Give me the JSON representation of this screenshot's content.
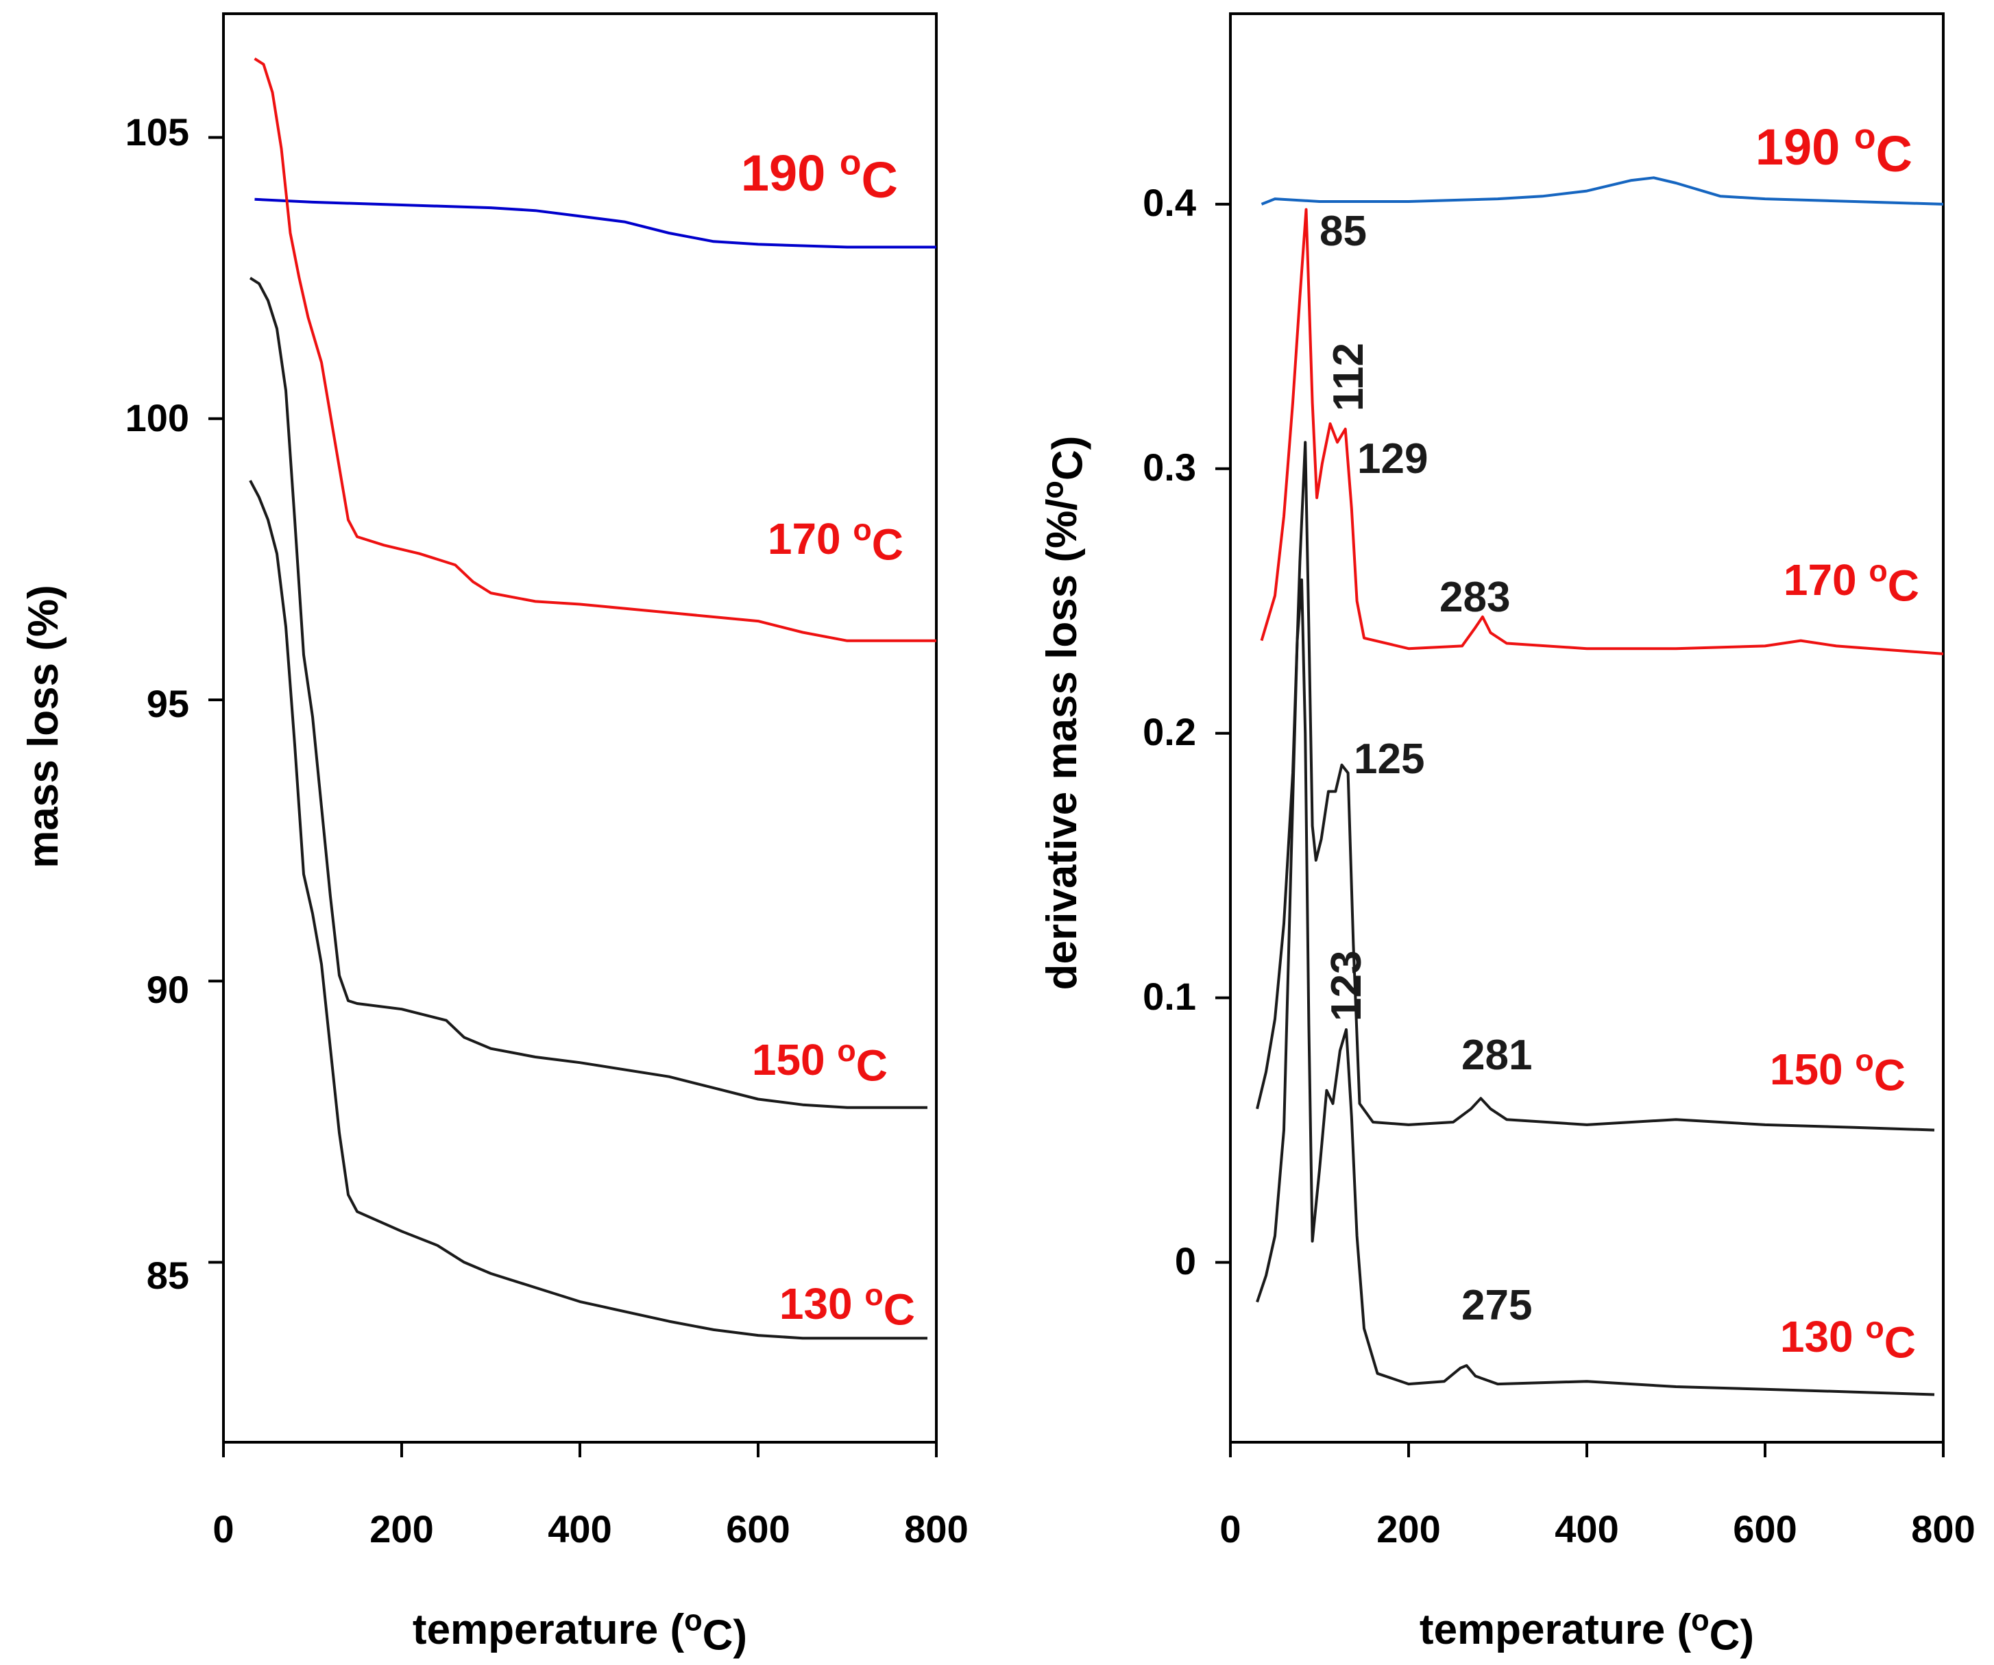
{
  "chart_data": [
    {
      "type": "line",
      "title": "",
      "xlabel": "temperature (°C)",
      "ylabel": "mass loss (%)",
      "xlim": [
        0,
        800
      ],
      "ylim": [
        81.8,
        107.2
      ],
      "xticks": [
        0,
        200,
        400,
        600,
        800
      ],
      "yticks": [
        85,
        90,
        95,
        100,
        105
      ],
      "grid": false,
      "series": [
        {
          "name": "190 °C",
          "color": "#0000cc",
          "x": [
            35,
            100,
            200,
            300,
            350,
            400,
            450,
            500,
            550,
            600,
            700,
            800
          ],
          "y": [
            103.9,
            103.85,
            103.8,
            103.75,
            103.7,
            103.6,
            103.5,
            103.3,
            103.15,
            103.1,
            103.05,
            103.05
          ]
        },
        {
          "name": "170 °C",
          "color": "#ee1111",
          "x": [
            35,
            45,
            55,
            65,
            75,
            85,
            95,
            110,
            125,
            140,
            150,
            180,
            220,
            260,
            280,
            300,
            350,
            400,
            500,
            600,
            650,
            700,
            800
          ],
          "y": [
            106.4,
            106.3,
            105.8,
            104.8,
            103.3,
            102.5,
            101.8,
            101.0,
            99.6,
            98.2,
            97.9,
            97.75,
            97.6,
            97.4,
            97.1,
            96.9,
            96.75,
            96.7,
            96.55,
            96.4,
            96.2,
            96.05,
            96.05
          ]
        },
        {
          "name": "150 °C",
          "color": "#1a1a1a",
          "x": [
            30,
            40,
            50,
            60,
            70,
            80,
            90,
            100,
            110,
            120,
            130,
            140,
            150,
            200,
            250,
            270,
            300,
            350,
            400,
            500,
            550,
            600,
            650,
            700,
            790
          ],
          "y": [
            102.5,
            102.4,
            102.1,
            101.6,
            100.5,
            98.2,
            95.8,
            94.7,
            93.1,
            91.5,
            90.1,
            89.65,
            89.6,
            89.5,
            89.3,
            89.0,
            88.8,
            88.65,
            88.55,
            88.3,
            88.1,
            87.9,
            87.8,
            87.75,
            87.75
          ]
        },
        {
          "name": "130 °C",
          "color": "#1a1a1a",
          "x": [
            30,
            40,
            50,
            60,
            70,
            80,
            90,
            100,
            110,
            120,
            130,
            140,
            150,
            200,
            240,
            270,
            300,
            350,
            400,
            500,
            550,
            600,
            650,
            700,
            790
          ],
          "y": [
            98.9,
            98.6,
            98.2,
            97.6,
            96.3,
            94.2,
            91.9,
            91.2,
            90.3,
            88.8,
            87.3,
            86.2,
            85.9,
            85.55,
            85.3,
            85.0,
            84.8,
            84.55,
            84.3,
            83.95,
            83.8,
            83.7,
            83.65,
            83.65,
            83.65
          ]
        }
      ],
      "annotations": [
        {
          "text": "190 °C",
          "color": "#ee1111"
        },
        {
          "text": "170 °C",
          "color": "#ee1111"
        },
        {
          "text": "150 °C",
          "color": "#ee1111"
        },
        {
          "text": "130 °C",
          "color": "#ee1111"
        }
      ]
    },
    {
      "type": "line",
      "title": "",
      "xlabel": "temperature (°C)",
      "ylabel": "derivative mass loss (%/°C)",
      "xlim": [
        0,
        800
      ],
      "ylim": [
        -0.068,
        0.472
      ],
      "xticks": [
        0,
        200,
        400,
        600,
        800
      ],
      "yticks": [
        0.0,
        0.1,
        0.2,
        0.3,
        0.4
      ],
      "grid": false,
      "series": [
        {
          "name": "190 °C",
          "color": "#1565c0",
          "x": [
            35,
            50,
            100,
            200,
            300,
            350,
            400,
            450,
            475,
            500,
            550,
            600,
            700,
            800
          ],
          "y": [
            0.4,
            0.402,
            0.401,
            0.401,
            0.402,
            0.403,
            0.405,
            0.409,
            0.41,
            0.408,
            0.403,
            0.402,
            0.401,
            0.4
          ]
        },
        {
          "name": "170 °C",
          "color": "#ee1111",
          "x": [
            35,
            50,
            60,
            70,
            78,
            85,
            92,
            97,
            103,
            112,
            120,
            129,
            136,
            142,
            150,
            200,
            260,
            275,
            283,
            292,
            310,
            400,
            500,
            600,
            640,
            680,
            800
          ],
          "y": [
            0.235,
            0.252,
            0.282,
            0.325,
            0.365,
            0.398,
            0.325,
            0.289,
            0.302,
            0.317,
            0.31,
            0.315,
            0.285,
            0.25,
            0.236,
            0.232,
            0.233,
            0.24,
            0.244,
            0.238,
            0.234,
            0.232,
            0.232,
            0.233,
            0.235,
            0.233,
            0.23
          ]
        },
        {
          "name": "150 °C",
          "color": "#1a1a1a",
          "x": [
            30,
            40,
            50,
            60,
            70,
            78,
            84,
            88,
            92,
            96,
            102,
            110,
            118,
            125,
            132,
            138,
            145,
            160,
            200,
            250,
            270,
            281,
            292,
            310,
            400,
            500,
            600,
            700,
            790
          ],
          "y": [
            0.058,
            0.072,
            0.092,
            0.128,
            0.185,
            0.265,
            0.31,
            0.24,
            0.165,
            0.152,
            0.16,
            0.178,
            0.178,
            0.188,
            0.185,
            0.12,
            0.06,
            0.053,
            0.052,
            0.053,
            0.058,
            0.062,
            0.058,
            0.054,
            0.052,
            0.054,
            0.052,
            0.051,
            0.05
          ]
        },
        {
          "name": "130 °C",
          "color": "#1a1a1a",
          "x": [
            30,
            40,
            50,
            60,
            68,
            75,
            80,
            84,
            88,
            92,
            100,
            108,
            115,
            123,
            130,
            136,
            142,
            150,
            165,
            200,
            240,
            258,
            265,
            275,
            300,
            400,
            500,
            600,
            700,
            790
          ],
          "y": [
            -0.015,
            -0.005,
            0.01,
            0.05,
            0.15,
            0.235,
            0.258,
            0.2,
            0.09,
            0.008,
            0.035,
            0.065,
            0.06,
            0.08,
            0.088,
            0.055,
            0.01,
            -0.025,
            -0.042,
            -0.046,
            -0.045,
            -0.04,
            -0.039,
            -0.043,
            -0.046,
            -0.045,
            -0.047,
            -0.048,
            -0.049,
            -0.05
          ]
        }
      ],
      "annotations": [
        {
          "text": "190 °C",
          "color": "#ee1111"
        },
        {
          "text": "170 °C",
          "color": "#ee1111"
        },
        {
          "text": "150 °C",
          "color": "#ee1111"
        },
        {
          "text": "130 °C",
          "color": "#ee1111"
        },
        {
          "text": "85",
          "color": "#1a1a1a"
        },
        {
          "text": "112",
          "color": "#1a1a1a"
        },
        {
          "text": "129",
          "color": "#1a1a1a"
        },
        {
          "text": "283",
          "color": "#1a1a1a"
        },
        {
          "text": "125",
          "color": "#1a1a1a"
        },
        {
          "text": "123",
          "color": "#1a1a1a"
        },
        {
          "text": "281",
          "color": "#1a1a1a"
        },
        {
          "text": "275",
          "color": "#1a1a1a"
        }
      ]
    }
  ]
}
